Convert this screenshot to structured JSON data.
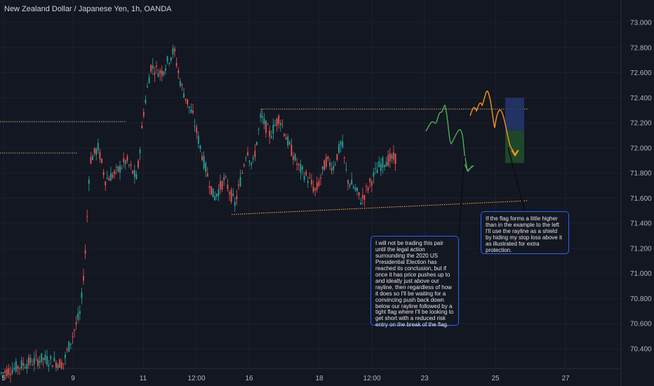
{
  "header": {
    "title": "New Zealand Dollar / Japanese Yen, 1h, OANDA"
  },
  "colors": {
    "background": "#131722",
    "up": "#26a69a",
    "down": "#ef5350",
    "green_path": "#4caf50",
    "orange_path": "#f7931a",
    "note_border": "#2962ff"
  },
  "notes": {
    "note1": "I will not be trading this pair until the legal action surrounding the 2020 US Presidential Election has reached its conclusion, but if once it has price pushes up to and ideally just above our rayline, then regardless of how it does so I'll be waiting for a convincing push back down below our rayline followed by a tight flag where I'll be looking to get short with a reduced risk entry on the break of the flag.",
    "note2": "If the flag forms a little higher than in the example to the left I'll use the rayline as a shield by hiding my stop loss above it as illustrated for extra protection."
  },
  "chart_data": {
    "type": "candlestick",
    "title": "New Zealand Dollar / Japanese Yen, 1h, OANDA",
    "symbol": "NZDJPY",
    "timeframe": "1h",
    "source": "OANDA",
    "y_axis": {
      "ticks": [
        73.0,
        72.8,
        72.6,
        72.4,
        72.2,
        72.0,
        71.8,
        71.6,
        71.4,
        71.2,
        71.0,
        70.8,
        70.6,
        70.4
      ],
      "labels": [
        "73.000",
        "72.800",
        "72.600",
        "72.400",
        "72.200",
        "72.000",
        "71.800",
        "71.600",
        "71.400",
        "71.200",
        "71.000",
        "70.800",
        "70.600",
        "70.400"
      ],
      "ylim": [
        70.28,
        73.06
      ]
    },
    "x_axis": {
      "labels": [
        "5",
        "9",
        "11",
        "12:00",
        "16",
        "18",
        "12:00",
        "23",
        "25",
        "27"
      ]
    },
    "price_path": [
      [
        0,
        70.2
      ],
      [
        35,
        70.28
      ],
      [
        60,
        70.32
      ],
      [
        90,
        70.28
      ],
      [
        100,
        70.45
      ],
      [
        115,
        70.7
      ],
      [
        122,
        71.2
      ],
      [
        128,
        71.9
      ],
      [
        140,
        72.0
      ],
      [
        150,
        71.75
      ],
      [
        165,
        71.8
      ],
      [
        180,
        71.9
      ],
      [
        195,
        71.75
      ],
      [
        205,
        72.3
      ],
      [
        215,
        72.65
      ],
      [
        230,
        72.6
      ],
      [
        248,
        72.78
      ],
      [
        258,
        72.5
      ],
      [
        275,
        72.25
      ],
      [
        290,
        71.9
      ],
      [
        305,
        71.6
      ],
      [
        320,
        71.75
      ],
      [
        335,
        71.55
      ],
      [
        345,
        71.8
      ],
      [
        352,
        72.0
      ],
      [
        360,
        71.85
      ],
      [
        372,
        72.25
      ],
      [
        385,
        72.1
      ],
      [
        398,
        72.25
      ],
      [
        410,
        72.05
      ],
      [
        425,
        71.85
      ],
      [
        440,
        71.75
      ],
      [
        450,
        71.65
      ],
      [
        465,
        71.9
      ],
      [
        475,
        71.85
      ],
      [
        487,
        72.05
      ],
      [
        495,
        71.75
      ],
      [
        505,
        71.68
      ],
      [
        515,
        71.58
      ],
      [
        530,
        71.75
      ],
      [
        540,
        71.85
      ],
      [
        550,
        71.9
      ],
      [
        564,
        71.92
      ]
    ],
    "annotations": {
      "rayline_top": 72.31,
      "horizontal_levels": [
        72.21,
        71.96
      ],
      "rising_trendline": {
        "from": 71.47,
        "to": 71.58
      },
      "short_position": {
        "entry": 72.14,
        "stop": 72.4,
        "target": 71.88
      }
    }
  }
}
